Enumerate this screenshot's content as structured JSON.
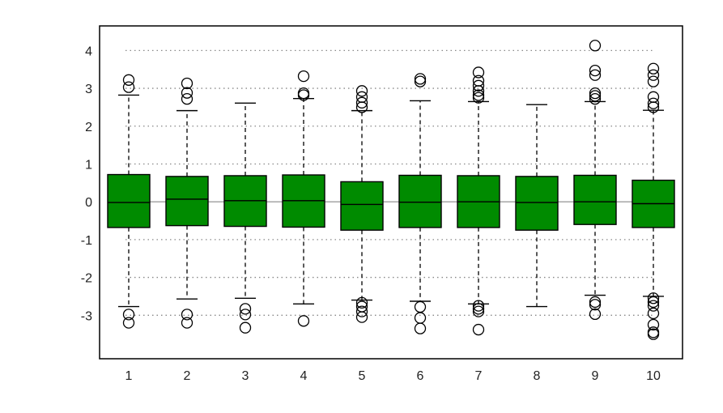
{
  "chart_data": {
    "type": "boxplot",
    "title": "",
    "xlabel": "",
    "ylabel": "",
    "ylim": [
      -4.15,
      4.65
    ],
    "xlim": [
      0.5,
      10.5
    ],
    "y_ticks": [
      4,
      3,
      2,
      1,
      0,
      -1,
      -2,
      -3
    ],
    "y_tick_labels": [
      "4",
      "3",
      "2",
      "1",
      "0",
      "-1",
      "-2",
      "-3"
    ],
    "categories": [
      "1",
      "2",
      "3",
      "4",
      "5",
      "6",
      "7",
      "8",
      "9",
      "10"
    ],
    "grid": "horizontal dotted",
    "reference_line": 0,
    "colors": {
      "box_fill": "#008b00",
      "box_stroke": "#000000",
      "grid": "#888888",
      "frame": "#000000"
    },
    "boxes": [
      {
        "q1": -0.68,
        "median": -0.02,
        "q3": 0.72,
        "whisker_low": -2.77,
        "whisker_high": 2.82,
        "outliers": [
          3.22,
          3.03,
          -2.98,
          -3.2
        ]
      },
      {
        "q1": -0.63,
        "median": 0.07,
        "q3": 0.67,
        "whisker_low": -2.57,
        "whisker_high": 2.41,
        "outliers": [
          3.13,
          2.88,
          2.72,
          -2.98,
          -3.2
        ]
      },
      {
        "q1": -0.65,
        "median": 0.03,
        "q3": 0.69,
        "whisker_low": -2.55,
        "whisker_high": 2.61,
        "outliers": [
          -2.83,
          -2.98,
          -3.33
        ]
      },
      {
        "q1": -0.67,
        "median": 0.03,
        "q3": 0.71,
        "whisker_low": -2.7,
        "whisker_high": 2.73,
        "outliers": [
          3.32,
          2.87,
          2.82,
          -3.15
        ]
      },
      {
        "q1": -0.75,
        "median": -0.07,
        "q3": 0.53,
        "whisker_low": -2.6,
        "whisker_high": 2.41,
        "outliers": [
          2.93,
          2.77,
          2.62,
          2.5,
          -2.67,
          -2.77,
          -2.9,
          -3.05
        ]
      },
      {
        "q1": -0.68,
        "median": -0.01,
        "q3": 0.7,
        "whisker_low": -2.63,
        "whisker_high": 2.67,
        "outliers": [
          3.25,
          3.18,
          -2.78,
          -3.07,
          -3.35
        ]
      },
      {
        "q1": -0.68,
        "median": 0.0,
        "q3": 0.69,
        "whisker_low": -2.7,
        "whisker_high": 2.65,
        "outliers": [
          3.42,
          3.2,
          3.07,
          2.93,
          2.82,
          2.75,
          -2.75,
          -2.83,
          -2.9,
          -3.38
        ]
      },
      {
        "q1": -0.75,
        "median": -0.02,
        "q3": 0.67,
        "whisker_low": -2.77,
        "whisker_high": 2.57,
        "outliers": []
      },
      {
        "q1": -0.6,
        "median": 0.0,
        "q3": 0.7,
        "whisker_low": -2.47,
        "whisker_high": 2.65,
        "outliers": [
          4.13,
          3.47,
          3.35,
          2.87,
          2.8,
          2.72,
          -2.65,
          -2.72,
          -2.97
        ]
      },
      {
        "q1": -0.68,
        "median": -0.05,
        "q3": 0.57,
        "whisker_low": -2.5,
        "whisker_high": 2.42,
        "outliers": [
          3.52,
          3.35,
          3.18,
          2.77,
          2.6,
          2.5,
          -2.55,
          -2.65,
          -2.75,
          -2.95,
          -3.25,
          -3.45,
          -3.5
        ]
      }
    ]
  }
}
